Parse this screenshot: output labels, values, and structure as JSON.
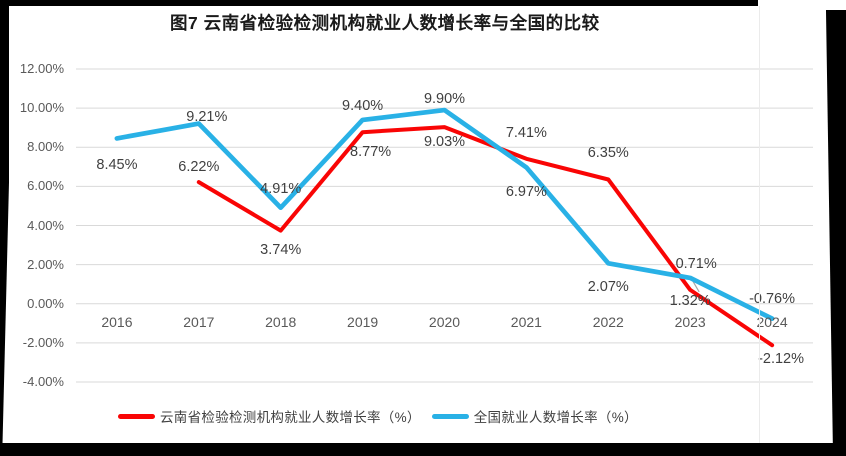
{
  "title": "图7  云南省检验检测机构就业人数增长率与全国的比较",
  "colors": {
    "yunnan_series": "#f90505",
    "national_series": "#29b1e6",
    "gridline": "#d9d9d9",
    "axis_text": "#595959",
    "data_label_text": "#404040",
    "leader_line": "#a6a6a6"
  },
  "chart_data": {
    "type": "line",
    "title": "图7  云南省检验检测机构就业人数增长率与全国的比较",
    "categories": [
      "2016",
      "2017",
      "2018",
      "2019",
      "2020",
      "2021",
      "2022",
      "2023",
      "2024"
    ],
    "xlabel": "",
    "ylabel": "",
    "grid": true,
    "legend_position": "bottom",
    "y_axis": {
      "min": -4,
      "max": 12,
      "tick_values": [
        12,
        10,
        8,
        6,
        4,
        2,
        0,
        -2,
        -4
      ],
      "tick_labels": [
        "12.00%",
        "10.00%",
        "8.00%",
        "6.00%",
        "4.00%",
        "2.00%",
        "0.00%",
        "-2.00%",
        "-4.00%"
      ]
    },
    "series": [
      {
        "name": "云南省检验检测机构就业人数增长率（%）",
        "color": "#f90505",
        "line_width": 4,
        "points": [
          {
            "category": "2017",
            "value": 6.22,
            "label": "6.22%",
            "label_pos": "above",
            "dy": -15
          },
          {
            "category": "2018",
            "value": 3.74,
            "label": "3.74%",
            "label_pos": "below",
            "dy": 19
          },
          {
            "category": "2019",
            "value": 8.77,
            "label": "8.77%",
            "label_pos": "below",
            "dy": 20,
            "dx": 8
          },
          {
            "category": "2020",
            "value": 9.03,
            "label": "9.03%",
            "label_pos": "below",
            "dy": 15
          },
          {
            "category": "2021",
            "value": 7.41,
            "label": "7.41%",
            "label_pos": "above",
            "dy": -26
          },
          {
            "category": "2022",
            "value": 6.35,
            "label": "6.35%",
            "label_pos": "above",
            "dy": -27
          },
          {
            "category": "2023",
            "value": 0.71,
            "label": "0.71%",
            "label_pos": "above",
            "dy": -26,
            "dx": 6
          },
          {
            "category": "2024",
            "value": -2.12,
            "label": "-2.12%",
            "label_pos": "below",
            "dy": 14,
            "dx": 9
          }
        ]
      },
      {
        "name": "全国就业人数增长率（%）",
        "color": "#29b1e6",
        "line_width": 4.7,
        "points": [
          {
            "category": "2016",
            "value": 8.45,
            "label": "8.45%",
            "label_pos": "below",
            "dy": 27
          },
          {
            "category": "2017",
            "value": 9.21,
            "label": "9.21%",
            "label_pos": "above",
            "dy": -7,
            "dx": 8
          },
          {
            "category": "2018",
            "value": 4.91,
            "label": "4.91%",
            "label_pos": "above",
            "dy": -19
          },
          {
            "category": "2019",
            "value": 9.4,
            "label": "9.40%",
            "label_pos": "above",
            "dy": -14
          },
          {
            "category": "2020",
            "value": 9.9,
            "label": "9.90%",
            "label_pos": "above",
            "dy": -11
          },
          {
            "category": "2021",
            "value": 6.97,
            "label": "6.97%",
            "label_pos": "below",
            "dy": 25
          },
          {
            "category": "2022",
            "value": 2.07,
            "label": "2.07%",
            "label_pos": "below",
            "dy": 24
          },
          {
            "category": "2023",
            "value": 1.32,
            "label": "1.32%",
            "label_pos": "below",
            "dy": 23,
            "leader": true
          },
          {
            "category": "2024",
            "value": -0.76,
            "label": "-0.76%",
            "label_pos": "above",
            "dy": -20
          }
        ]
      }
    ]
  }
}
